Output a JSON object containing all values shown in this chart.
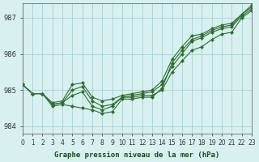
{
  "title": "Graphe pression niveau de la mer (hPa)",
  "bg_color": "#d8f0f0",
  "grid_color": "#aad0d0",
  "line_color": "#2d6e2d",
  "xlim": [
    0,
    23
  ],
  "ylim": [
    983.8,
    987.4
  ],
  "yticks": [
    984,
    985,
    986,
    987
  ],
  "xtick_labels": [
    "0",
    "1",
    "2",
    "3",
    "4",
    "5",
    "6",
    "7",
    "8",
    "9",
    "10",
    "11",
    "12",
    "13",
    "14",
    "15",
    "16",
    "17",
    "18",
    "19",
    "20",
    "21",
    "22",
    "23"
  ],
  "series": [
    [
      985.15,
      984.9,
      984.9,
      984.6,
      984.65,
      984.85,
      984.95,
      984.55,
      984.45,
      984.55,
      984.8,
      984.8,
      984.85,
      984.85,
      985.0,
      985.5,
      985.8,
      986.1,
      986.2,
      986.4,
      986.55,
      986.6,
      987.0,
      987.2
    ],
    [
      985.15,
      984.9,
      984.9,
      984.6,
      984.65,
      985.0,
      985.1,
      984.7,
      984.55,
      984.6,
      984.8,
      984.85,
      984.9,
      984.95,
      985.15,
      985.65,
      986.0,
      986.35,
      986.45,
      986.6,
      986.7,
      986.75,
      987.05,
      987.25
    ],
    [
      985.15,
      984.9,
      984.9,
      984.55,
      984.6,
      984.55,
      984.5,
      984.45,
      984.35,
      984.4,
      984.75,
      984.75,
      984.8,
      984.8,
      985.05,
      985.75,
      986.1,
      986.4,
      986.5,
      986.65,
      986.75,
      986.8,
      987.1,
      987.3
    ],
    [
      985.15,
      984.9,
      984.9,
      984.65,
      984.7,
      985.15,
      985.2,
      984.8,
      984.7,
      984.75,
      984.85,
      984.9,
      984.95,
      985.0,
      985.25,
      985.85,
      986.2,
      986.5,
      986.55,
      986.7,
      986.8,
      986.85,
      987.1,
      987.35
    ]
  ]
}
